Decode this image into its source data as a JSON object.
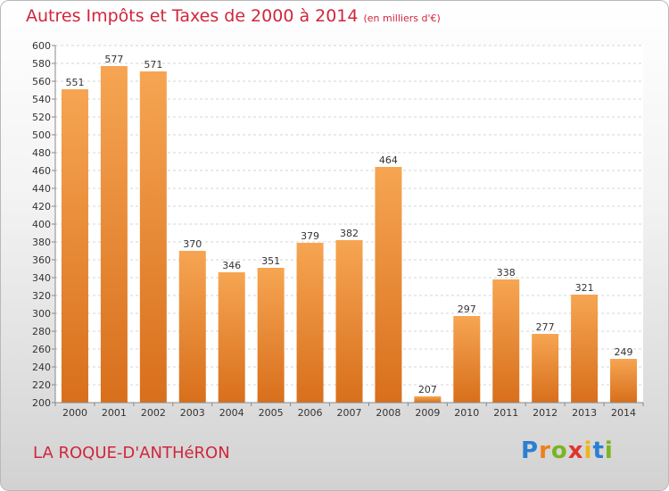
{
  "title": "Autres Impôts et Taxes de 2000 à 2014",
  "subtitle": "(en milliers d'€)",
  "place": "LA ROQUE-D'ANTHéRON",
  "logo": [
    "P",
    "r",
    "o",
    "x",
    "i",
    "t",
    "i"
  ],
  "colors": {
    "title": "#d0263d",
    "bar_light": "#f6a552",
    "bar_dark": "#d86f1c"
  },
  "chart_data": {
    "type": "bar",
    "categories": [
      "2000",
      "2001",
      "2002",
      "2003",
      "2004",
      "2005",
      "2006",
      "2007",
      "2008",
      "2009",
      "2010",
      "2011",
      "2012",
      "2013",
      "2014"
    ],
    "values": [
      551,
      577,
      571,
      370,
      346,
      351,
      379,
      382,
      464,
      207,
      297,
      338,
      277,
      321,
      249
    ],
    "ylim": [
      200,
      600
    ],
    "yticks": [
      200,
      220,
      240,
      260,
      280,
      300,
      320,
      340,
      360,
      380,
      400,
      420,
      440,
      460,
      480,
      500,
      520,
      540,
      560,
      580,
      600
    ],
    "grid": true
  }
}
